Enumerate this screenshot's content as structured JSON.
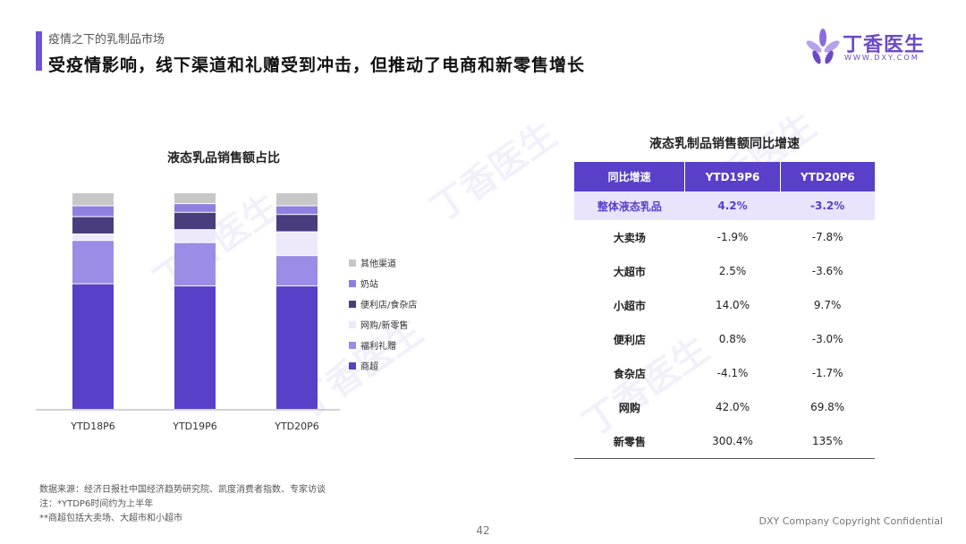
{
  "header": {
    "section_title": "疫情之下的乳制品市场",
    "page_title": "受疫情影响，线下渠道和礼赠受到冲击，但推动了电商和新零售增长"
  },
  "logo": {
    "name": "丁香医生",
    "sub": "WWW.DXY.COM",
    "icon": "clove-flower-icon"
  },
  "colors": {
    "accent": "#6f52d6",
    "table_header": "#5a3fc8"
  },
  "chart_data": [
    {
      "type": "bar",
      "stacked": true,
      "title": "液态乳品销售额占比",
      "categories": [
        "YTD18P6",
        "YTD19P6",
        "YTD20P6"
      ],
      "ylim": [
        0,
        100
      ],
      "legend_position": "right",
      "series": [
        {
          "name": "商超",
          "color": "#5a3fc8",
          "values": [
            58,
            57,
            57
          ]
        },
        {
          "name": "福利礼赠",
          "color": "#9b8ce6",
          "values": [
            20,
            20,
            14
          ]
        },
        {
          "name": "网购/新零售",
          "color": "#ede9fb",
          "values": [
            3,
            6,
            11
          ]
        },
        {
          "name": "便利店/食杂店",
          "color": "#4a3d7e",
          "values": [
            8,
            8,
            8
          ]
        },
        {
          "name": "奶站",
          "color": "#8e7fe0",
          "values": [
            5,
            4,
            4
          ]
        },
        {
          "name": "其他渠道",
          "color": "#c7c7c7",
          "values": [
            6,
            5,
            6
          ]
        }
      ]
    },
    {
      "type": "table",
      "title": "液态乳制品销售额同比增速",
      "columns": [
        "同比增速",
        "YTD19P6",
        "YTD20P6"
      ],
      "rows": [
        [
          "整体液态乳品",
          "4.2%",
          "-3.2%"
        ],
        [
          "大卖场",
          "-1.9%",
          "-7.8%"
        ],
        [
          "大超市",
          "2.5%",
          "-3.6%"
        ],
        [
          "小超市",
          "14.0%",
          "9.7%"
        ],
        [
          "便利店",
          "0.8%",
          "-3.0%"
        ],
        [
          "食杂店",
          "-4.1%",
          "-1.7%"
        ],
        [
          "网购",
          "42.0%",
          "69.8%"
        ],
        [
          "新零售",
          "300.4%",
          "135%"
        ]
      ]
    }
  ],
  "footnotes": [
    "数据来源：经济日报社中国经济趋势研究院、凯度消费者指数、专家访谈",
    "注：*YTDP6时间约为上半年",
    "**商超包括大卖场、大超市和小超市"
  ],
  "footer": {
    "page_number": "42",
    "copyright": "DXY Company Copyright Confidential"
  }
}
